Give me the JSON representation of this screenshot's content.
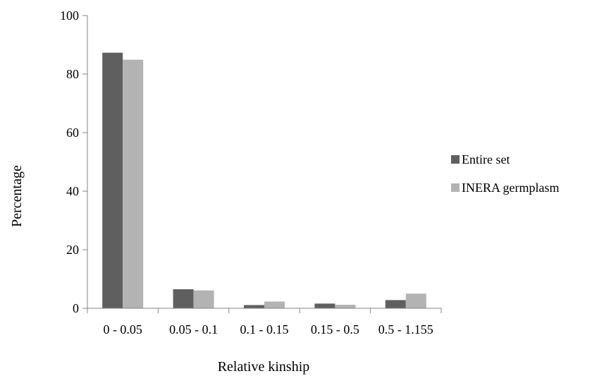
{
  "chart_data": {
    "type": "bar",
    "title": "",
    "xlabel": "Relative kinship",
    "ylabel": "Percentage",
    "categories": [
      "0 - 0.05",
      "0.05 - 0.1",
      "0.1 - 0.15",
      "0.15 - 0.5",
      "0.5 - 1.155"
    ],
    "series": [
      {
        "name": "Entire set",
        "values": [
          87.3,
          6.5,
          1.1,
          1.6,
          2.8
        ],
        "color": "#5f5f5f"
      },
      {
        "name": "INERA germplasm",
        "values": [
          84.9,
          6.1,
          2.3,
          1.2,
          5.0
        ],
        "color": "#b3b3b3"
      }
    ],
    "ylim": [
      0,
      100
    ],
    "yticks": [
      0,
      20,
      40,
      60,
      80,
      100
    ],
    "grid": false,
    "legend_position": "right"
  }
}
